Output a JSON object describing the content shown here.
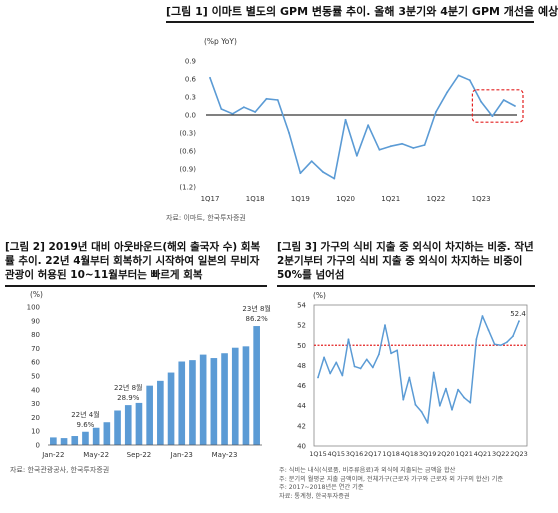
{
  "chart1": {
    "title": "[그림 1] 이마트 별도의 GPM 변동률 추이. 올해 3분기와 4분기 GPM 개선을 예상",
    "unit": "(%p YoY)",
    "source": "자료: 이마트, 한국투자증권",
    "y_ticks": [
      "0.9",
      "0.6",
      "0.3",
      "0.0",
      "(0.3)",
      "(0.6)",
      "(0.9)",
      "(1.2)"
    ],
    "x_ticks": [
      "1Q17",
      "1Q18",
      "1Q19",
      "1Q20",
      "1Q21",
      "1Q22",
      "1Q23"
    ],
    "line_color": "#5b9bd5",
    "highlight_color": "#e32020"
  },
  "chart2": {
    "title": "[그림 2] 2019년 대비 아웃바운드(해외 출국자 수) 회복률 추이. 22년 4월부터 회복하기 시작하여 일본의 무비자 관광이 허용된 10~11월부터는 빠르게 회복",
    "unit": "(%)",
    "source": "자료: 한국관광공사, 한국투자증권",
    "y_ticks": [
      "0",
      "10",
      "20",
      "30",
      "40",
      "50",
      "60",
      "70",
      "80",
      "90",
      "100"
    ],
    "x_ticks": [
      "Jan-22",
      "May-22",
      "Sep-22",
      "Jan-23",
      "May-23"
    ],
    "annotations": [
      {
        "line1": "22년 4월",
        "line2": "9.6%"
      },
      {
        "line1": "22년 8월",
        "line2": "28.9%"
      },
      {
        "line1": "23년 8월",
        "line2": "86.2%"
      }
    ],
    "bar_color": "#5b9bd5"
  },
  "chart3": {
    "title": "[그림 3] 가구의 식비 지출 중 외식이 차지하는 비중. 작년 2분기부터 가구의 식비 지출 중 외식이 차지하는 비중이 50%를 넘어섬",
    "unit": "(%)",
    "source_lines": [
      "주: 식비는 내식(식료품, 비주류음료)과 외식에 지출되는 금액을 합산",
      "주: 분기의 월평균 지출 금액이며, 전체가구(근로자 가구와 근로자 외 가구의 합산) 기준",
      "주: 2017~2018년은 연간 기준",
      "자료: 통계청, 한국투자증권"
    ],
    "y_ticks": [
      "40",
      "42",
      "44",
      "46",
      "48",
      "50",
      "52",
      "54"
    ],
    "x_ticks": [
      "1Q15",
      "4Q15",
      "3Q16",
      "2Q17",
      "1Q18",
      "4Q18",
      "3Q19",
      "2Q20",
      "1Q21",
      "4Q21",
      "3Q22",
      "2Q23"
    ],
    "end_label": "52.4",
    "line_color": "#5b9bd5",
    "ref_color": "#e32020"
  },
  "chart_data": [
    {
      "type": "line",
      "title": "[그림 1] 이마트 별도의 GPM 변동률 추이. 올해 3분기와 4분기 GPM 개선을 예상",
      "ylabel": "(%p YoY)",
      "ylim": [
        -1.2,
        0.9
      ],
      "x": [
        "1Q17",
        "2Q17",
        "3Q17",
        "4Q17",
        "1Q18",
        "2Q18",
        "3Q18",
        "4Q18",
        "1Q19",
        "2Q19",
        "3Q19",
        "4Q19",
        "1Q20",
        "2Q20",
        "3Q20",
        "4Q20",
        "1Q21",
        "2Q21",
        "3Q21",
        "4Q21",
        "1Q22",
        "2Q22",
        "3Q22",
        "4Q22",
        "1Q23",
        "2Q23",
        "3Q23F",
        "4Q23F"
      ],
      "series": [
        {
          "values": [
            0.62,
            0.1,
            0.02,
            0.13,
            0.05,
            0.27,
            0.25,
            -0.3,
            -0.97,
            -0.77,
            -0.95,
            -1.06,
            -0.08,
            -0.68,
            -0.17,
            -0.58,
            -0.52,
            -0.48,
            -0.55,
            -0.5,
            0.05,
            0.38,
            0.66,
            0.58,
            0.22,
            -0.02,
            0.25,
            0.15
          ]
        }
      ],
      "highlight": {
        "from": "2Q23",
        "to": "4Q23F"
      }
    },
    {
      "type": "bar",
      "title": "[그림 2] 2019년 대비 아웃바운드(해외 출국자 수) 회복률 추이. 22년 4월부터 회복하기 시작하여 일본의 무비자 관광이 허용된 10~11월부터는 빠르게 회복",
      "ylabel": "(%)",
      "ylim": [
        0,
        100
      ],
      "categories": [
        "Jan-22",
        "Feb-22",
        "Mar-22",
        "Apr-22",
        "May-22",
        "Jun-22",
        "Jul-22",
        "Aug-22",
        "Sep-22",
        "Oct-22",
        "Nov-22",
        "Dec-22",
        "Jan-23",
        "Feb-23",
        "Mar-23",
        "Apr-23",
        "May-23",
        "Jun-23",
        "Jul-23",
        "Aug-23"
      ],
      "series": [
        {
          "values": [
            5.5,
            5.0,
            6.5,
            9.6,
            12.5,
            16.5,
            25.0,
            28.9,
            30.5,
            43.0,
            46.5,
            52.5,
            60.5,
            61.5,
            65.5,
            63.0,
            66.5,
            70.5,
            71.5,
            86.2
          ]
        }
      ]
    },
    {
      "type": "line",
      "title": "[그림 3] 가구의 식비 지출 중 외식이 차지하는 비중. 작년 2분기부터 가구의 식비 지출 중 외식이 차지하는 비중이 50%를 넘어섬",
      "ylabel": "(%)",
      "ylim": [
        40,
        54
      ],
      "x": [
        "1Q15",
        "2Q15",
        "3Q15",
        "4Q15",
        "1Q16",
        "2Q16",
        "3Q16",
        "4Q16",
        "1Q17",
        "2Q17",
        "3Q17",
        "4Q17",
        "1Q18",
        "2Q18",
        "3Q18",
        "4Q18",
        "1Q19",
        "2Q19",
        "3Q19",
        "4Q19",
        "1Q20",
        "2Q20",
        "3Q20",
        "4Q20",
        "1Q21",
        "2Q21",
        "3Q21",
        "4Q21",
        "1Q22",
        "2Q22",
        "3Q22",
        "4Q22",
        "1Q23",
        "2Q23"
      ],
      "series": [
        {
          "values": [
            46.8,
            48.8,
            47.2,
            48.3,
            47.0,
            50.6,
            47.9,
            47.7,
            48.6,
            47.8,
            49.1,
            52.0,
            49.2,
            49.5,
            44.6,
            46.8,
            44.1,
            43.4,
            42.3,
            47.3,
            44.0,
            45.7,
            43.6,
            45.6,
            44.8,
            44.3,
            50.6,
            52.9,
            51.5,
            50.1,
            50.0,
            50.3,
            50.9,
            52.4
          ]
        }
      ],
      "reference_line": 50
    }
  ]
}
